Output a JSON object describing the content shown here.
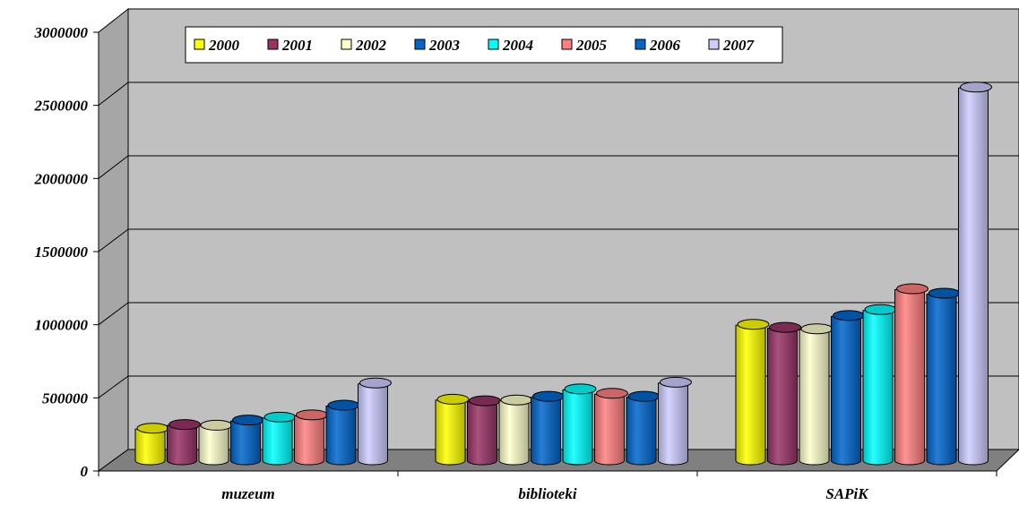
{
  "chart_data": {
    "type": "bar",
    "categories": [
      "muzeum",
      "biblioteki",
      "SAPiK"
    ],
    "series": [
      {
        "name": "2000",
        "color": "#FFFF00",
        "values": [
          240000,
          435000,
          940000
        ]
      },
      {
        "name": "2001",
        "color": "#993366",
        "values": [
          265000,
          425000,
          920000
        ]
      },
      {
        "name": "2002",
        "color": "#FFFFCC",
        "values": [
          260000,
          430000,
          910000
        ]
      },
      {
        "name": "2003",
        "color": "#0066CC",
        "values": [
          295000,
          455000,
          1000000
        ]
      },
      {
        "name": "2004",
        "color": "#00FFFF",
        "values": [
          315000,
          505000,
          1040000
        ]
      },
      {
        "name": "2005",
        "color": "#FF8080",
        "values": [
          330000,
          475000,
          1180000
        ]
      },
      {
        "name": "2006",
        "color": "#0066CC",
        "values": [
          395000,
          455000,
          1150000
        ]
      },
      {
        "name": "2007",
        "color": "#CCCCFF",
        "values": [
          545000,
          550000,
          2540000
        ]
      }
    ],
    "yticks": [
      "0",
      "500000",
      "1000000",
      "1500000",
      "2000000",
      "2500000",
      "3000000"
    ],
    "ylim": [
      0,
      3000000
    ],
    "grid": true,
    "legend_position": "top-left",
    "title": "",
    "xlabel": "",
    "ylabel": ""
  }
}
